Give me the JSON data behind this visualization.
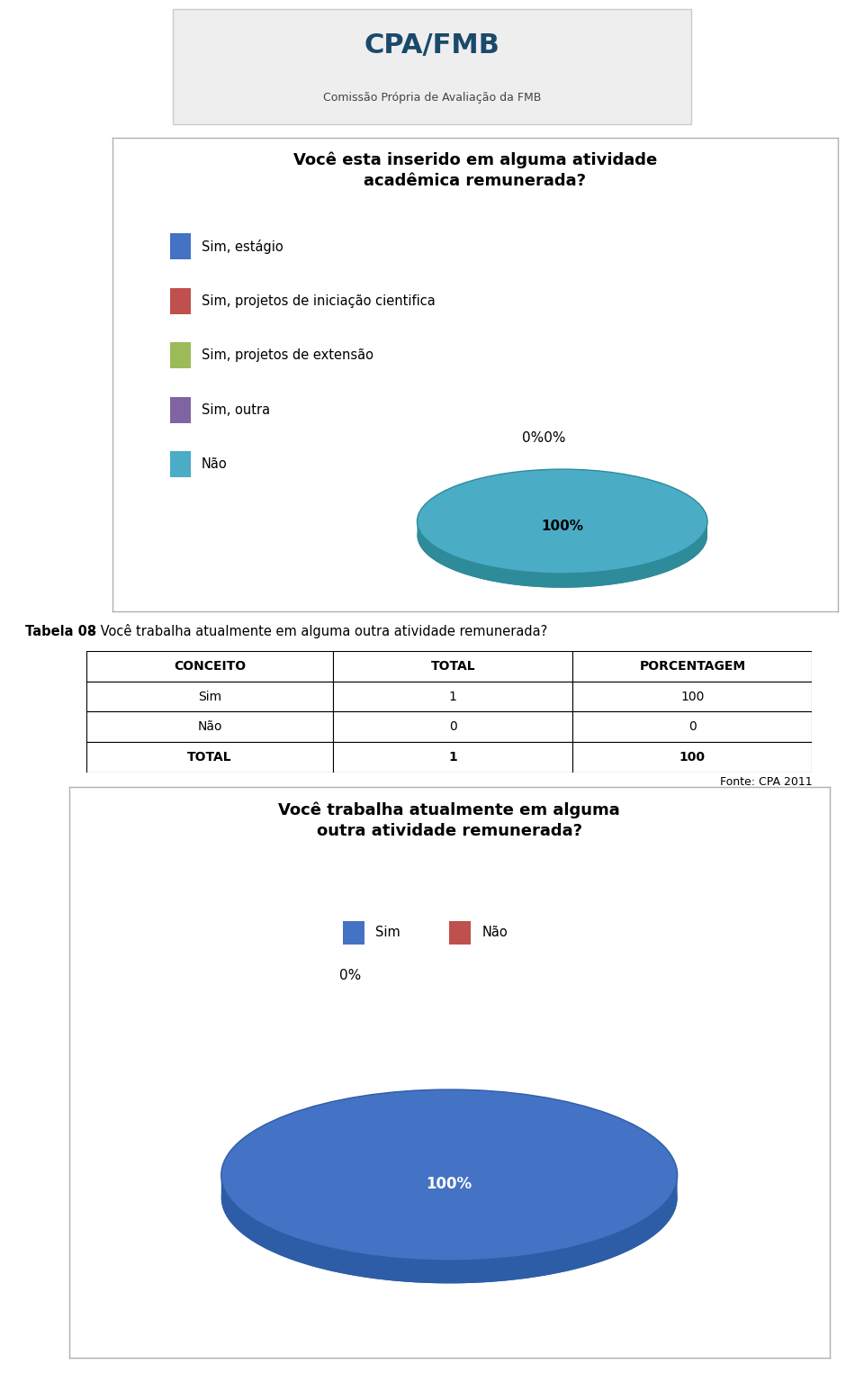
{
  "chart1_title": "Você esta inserido em alguma atividade\nacadêmica remunerada?",
  "chart1_legend": [
    {
      "label": "Sim, estágio",
      "color": "#4472C4"
    },
    {
      "label": "Sim, projetos de iniciação cientifica",
      "color": "#C0504D"
    },
    {
      "label": "Sim, projetos de extensão",
      "color": "#9BBB59"
    },
    {
      "label": "Sim, outra",
      "color": "#8064A2"
    },
    {
      "label": "Não",
      "color": "#4BACC6"
    }
  ],
  "chart1_pie_color_top": "#4BACC6",
  "chart1_pie_color_side": "#2E8B9A",
  "chart1_zero_label": "0%0%",
  "chart1_hundred_label": "100%",
  "table_caption_bold": "Tabela 08",
  "table_caption_rest": " – Você trabalha atualmente em alguma outra atividade remunerada?",
  "table_headers": [
    "CONCEITO",
    "TOTAL",
    "PORCENTAGEM"
  ],
  "table_rows": [
    [
      "Sim",
      "1",
      "100"
    ],
    [
      "Não",
      "0",
      "0"
    ],
    [
      "TOTAL",
      "1",
      "100"
    ]
  ],
  "table_source": "Fonte: CPA 2011",
  "chart2_title": "Você trabalha atualmente em alguma\noutra atividade remunerada?",
  "chart2_legend": [
    {
      "label": "Sim",
      "color": "#4472C4"
    },
    {
      "label": "Não",
      "color": "#C0504D"
    }
  ],
  "chart2_pie_color_top": "#4472C4",
  "chart2_pie_color_side": "#2E5DA8",
  "chart2_zero_label": "0%",
  "chart2_hundred_label": "100%",
  "background_color": "#FFFFFF",
  "box_bg": "#FFFFFF",
  "box_edge": "#B0B0B0",
  "logo_text": "Comissão Própria de Avaliação da FMB"
}
